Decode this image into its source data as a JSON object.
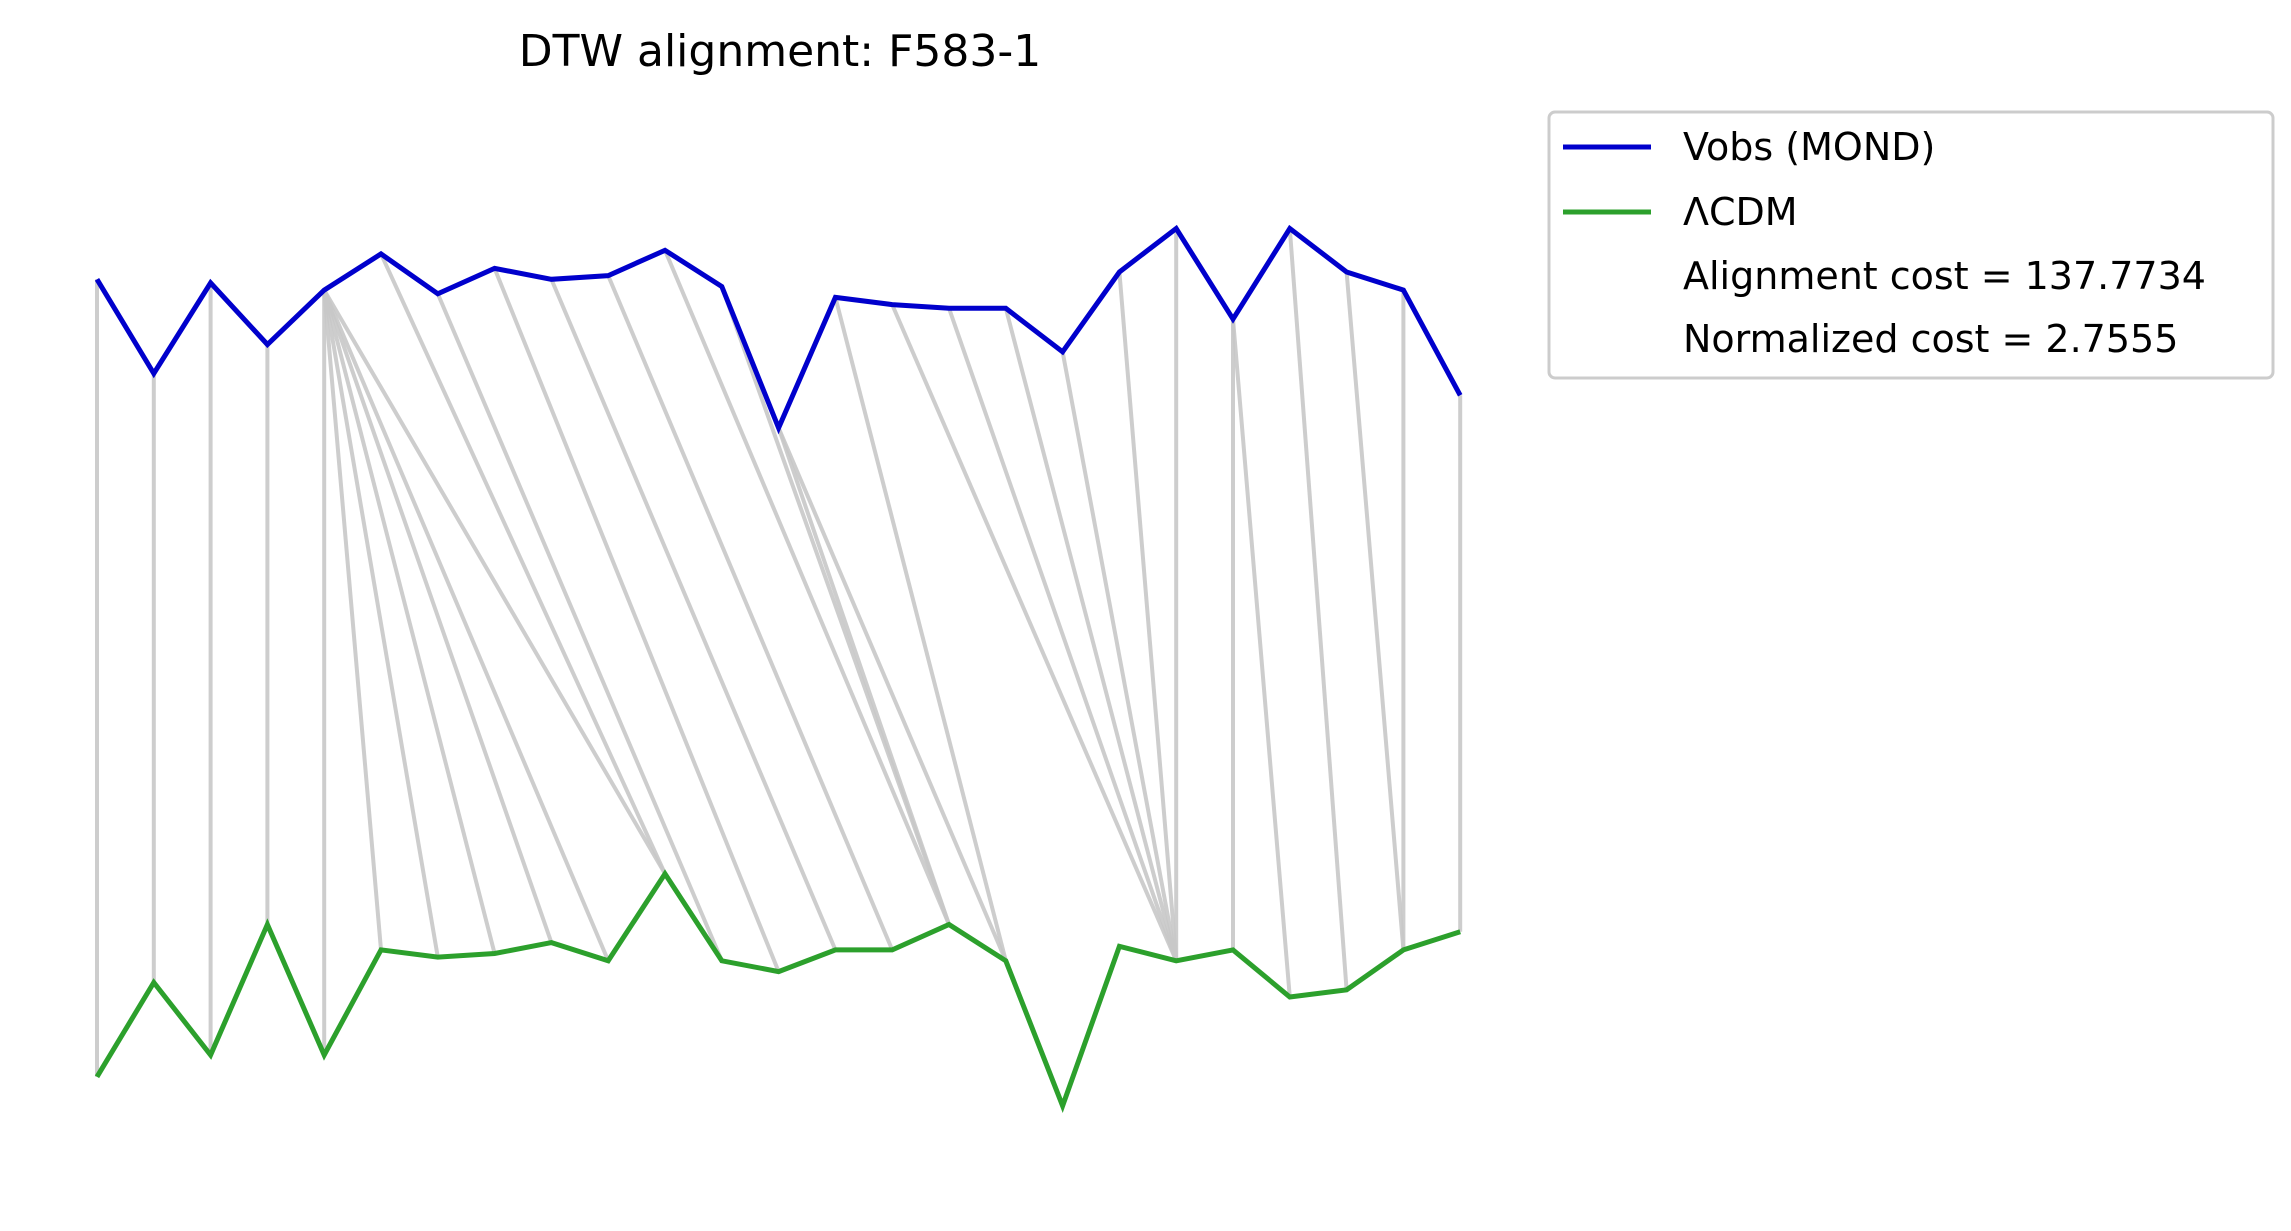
{
  "chart_data": {
    "type": "line",
    "title": "DTW alignment: F583-1",
    "xlabel": "",
    "ylabel": "",
    "grid": false,
    "axes_visible": false,
    "legend_position": "outside-top-right",
    "colors": {
      "vobs": "#0000cc",
      "lcdm": "#2ca02c",
      "alignment": "#c8c8c8"
    },
    "ylim": [
      -0.5,
      2.7
    ],
    "series": [
      {
        "name": "Vobs (MOND)",
        "color": "#0000cc",
        "values": [
          2.04,
          1.78,
          2.03,
          1.86,
          2.01,
          2.11,
          2.0,
          2.07,
          2.04,
          2.05,
          2.12,
          2.02,
          1.63,
          1.99,
          1.97,
          1.96,
          1.96,
          1.84,
          2.06,
          2.18,
          1.93,
          2.18,
          2.06,
          2.01,
          1.72
        ]
      },
      {
        "name": "ΛCDM",
        "color": "#2ca02c",
        "values": [
          -0.16,
          0.1,
          -0.1,
          0.26,
          -0.1,
          0.19,
          0.17,
          0.18,
          0.21,
          0.16,
          0.4,
          0.16,
          0.13,
          0.19,
          0.19,
          0.26,
          0.16,
          -0.24,
          0.2,
          0.16,
          0.19,
          0.06,
          0.08,
          0.19,
          0.24
        ]
      }
    ],
    "alignment_path": [
      [
        0,
        0
      ],
      [
        1,
        1
      ],
      [
        2,
        2
      ],
      [
        3,
        3
      ],
      [
        4,
        4
      ],
      [
        4,
        5
      ],
      [
        4,
        6
      ],
      [
        4,
        7
      ],
      [
        4,
        8
      ],
      [
        4,
        9
      ],
      [
        4,
        10
      ],
      [
        5,
        10
      ],
      [
        6,
        11
      ],
      [
        7,
        12
      ],
      [
        8,
        13
      ],
      [
        9,
        14
      ],
      [
        10,
        15
      ],
      [
        11,
        15
      ],
      [
        12,
        15
      ],
      [
        12,
        16
      ],
      [
        13,
        16
      ],
      [
        14,
        19
      ],
      [
        15,
        19
      ],
      [
        16,
        19
      ],
      [
        17,
        19
      ],
      [
        18,
        19
      ],
      [
        19,
        19
      ],
      [
        20,
        20
      ],
      [
        20,
        21
      ],
      [
        21,
        22
      ],
      [
        22,
        23
      ],
      [
        23,
        23
      ],
      [
        24,
        24
      ]
    ],
    "annotations": [
      "Alignment cost = 137.7734",
      "Normalized cost = 2.7555"
    ]
  }
}
